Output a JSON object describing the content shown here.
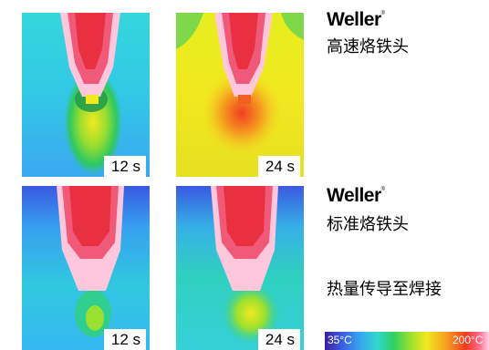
{
  "panels": [
    {
      "time": "12 s"
    },
    {
      "time": "24 s"
    },
    {
      "time": "12 s"
    },
    {
      "time": "24 s"
    }
  ],
  "brand_top": "Weller",
  "brand_bottom": "Weller",
  "caption_top": "高速烙铁头",
  "caption_bottom": "标准烙铁头",
  "caption_heat": "热量传导至焊接",
  "scale": {
    "min": "35°C",
    "max": "200°C"
  },
  "palette": {
    "cold": "#2f40c8",
    "cool": "#37a8f0",
    "warm": "#f2e820",
    "hot": "#f03a20",
    "max": "#ffc0d8"
  }
}
